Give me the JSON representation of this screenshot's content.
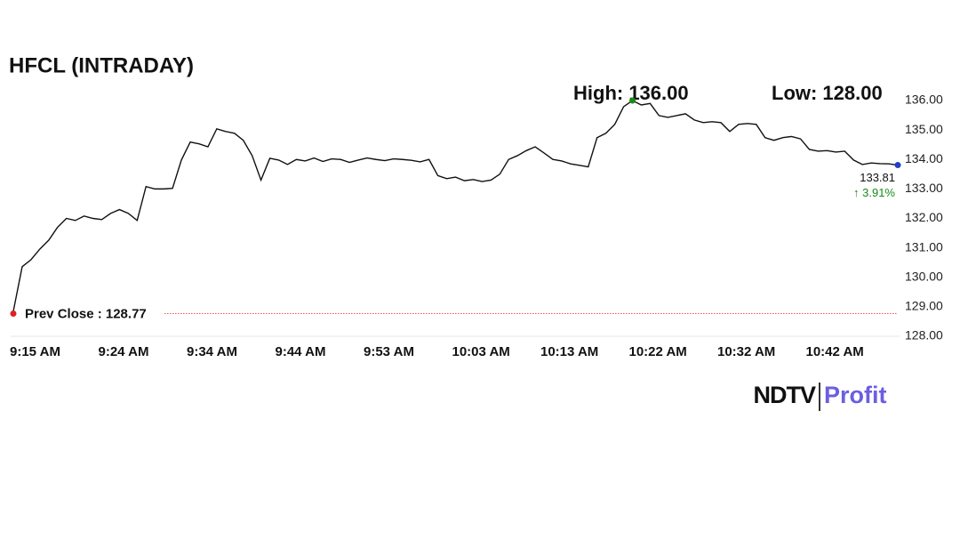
{
  "chart_data": {
    "type": "line",
    "title": "HFCL (INTRADAY)",
    "categories": [
      "9:15 AM",
      null,
      null,
      null,
      null,
      null,
      null,
      null,
      null,
      null,
      "9:24 AM",
      null,
      null,
      null,
      null,
      null,
      null,
      null,
      null,
      null,
      "9:34 AM",
      null,
      null,
      null,
      null,
      null,
      null,
      null,
      null,
      null,
      "9:44 AM",
      null,
      null,
      null,
      null,
      null,
      null,
      null,
      null,
      null,
      "9:53 AM",
      null,
      null,
      null,
      null,
      null,
      null,
      null,
      null,
      null,
      "10:03 AM",
      null,
      null,
      null,
      null,
      null,
      null,
      null,
      null,
      null,
      "10:13 AM",
      null,
      null,
      null,
      null,
      null,
      null,
      null,
      null,
      null,
      "10:22 AM",
      null,
      null,
      null,
      null,
      null,
      null,
      null,
      null,
      null,
      "10:32 AM",
      null,
      null,
      null,
      null,
      null,
      null,
      null,
      null,
      null,
      "10:42 AM",
      null,
      null,
      null,
      null,
      null,
      null,
      null,
      null,
      null,
      null
    ],
    "series": [
      {
        "name": "HFCL",
        "color": "#111111",
        "values": [
          128.85,
          130.36,
          130.6,
          130.96,
          131.26,
          131.7,
          132.0,
          131.93,
          132.08,
          132.0,
          131.96,
          132.17,
          132.3,
          132.17,
          131.93,
          133.08,
          133.0,
          133.0,
          133.02,
          133.98,
          134.59,
          134.53,
          134.43,
          135.04,
          134.95,
          134.89,
          134.65,
          134.13,
          133.3,
          134.04,
          133.98,
          133.83,
          134.0,
          133.95,
          134.05,
          133.93,
          134.02,
          134.0,
          133.9,
          133.98,
          134.05,
          134.0,
          133.96,
          134.02,
          134.0,
          133.97,
          133.92,
          134.0,
          133.45,
          133.35,
          133.4,
          133.28,
          133.32,
          133.25,
          133.3,
          133.5,
          134.0,
          134.13,
          134.3,
          134.43,
          134.22,
          134.0,
          133.95,
          133.85,
          133.8,
          133.75,
          134.74,
          134.89,
          135.19,
          135.79,
          136.0,
          135.85,
          135.9,
          135.49,
          135.43,
          135.49,
          135.55,
          135.34,
          135.25,
          135.28,
          135.25,
          134.95,
          135.19,
          135.22,
          135.19,
          134.74,
          134.65,
          134.74,
          134.78,
          134.7,
          134.34,
          134.28,
          134.3,
          134.25,
          134.28,
          133.98,
          133.83,
          133.88,
          133.86,
          133.85,
          133.81
        ]
      }
    ],
    "ylim": [
      128,
      136
    ],
    "yticks": [
      {
        "value": 128,
        "label": "128.00"
      },
      {
        "value": 129,
        "label": "129.00"
      },
      {
        "value": 130,
        "label": "130.00"
      },
      {
        "value": 131,
        "label": "131.00"
      },
      {
        "value": 132,
        "label": "132.00"
      },
      {
        "value": 133,
        "label": "133.00"
      },
      {
        "value": 134,
        "label": "134.00"
      },
      {
        "value": 135,
        "label": "135.00"
      },
      {
        "value": 136,
        "label": "136.00"
      }
    ],
    "high": {
      "value": 136,
      "label": "High: 136.00",
      "color": "#1a8a1a"
    },
    "low": {
      "value": 128,
      "label": "Low: 128.00"
    },
    "prev_close": {
      "value": 128.77,
      "label": "Prev Close : 128.77",
      "color": "#e02020"
    },
    "last": {
      "value": 133.81,
      "label": "133.81",
      "color": "#1f3fc8"
    },
    "change": {
      "value": 3.91,
      "label": "↑ 3.91%",
      "color": "#1a8a1a"
    },
    "logo": [
      "NDTV",
      "Profit"
    ]
  }
}
